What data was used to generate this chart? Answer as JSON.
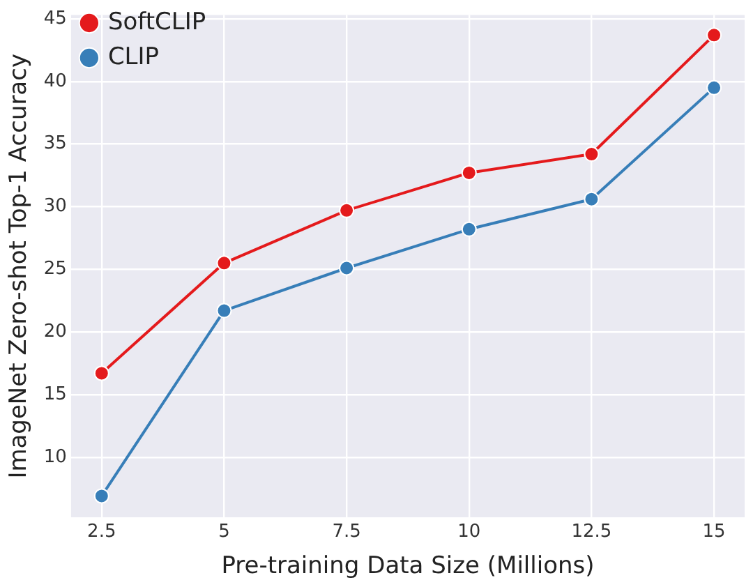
{
  "chart_data": {
    "type": "line",
    "xlabel": "Pre-training Data Size (Millions)",
    "ylabel": "ImageNet Zero-shot Top-1 Accuracy",
    "x": [
      2.5,
      5,
      7.5,
      10,
      12.5,
      15
    ],
    "series": [
      {
        "name": "SoftCLIP",
        "color": "#e41a1c",
        "values": [
          16.7,
          25.5,
          29.7,
          32.7,
          34.2,
          43.7
        ]
      },
      {
        "name": "CLIP",
        "color": "#377eb8",
        "values": [
          6.9,
          21.7,
          25.1,
          28.2,
          30.6,
          39.5
        ]
      }
    ],
    "xlim": [
      1.875,
      15.625
    ],
    "xticks": [
      {
        "value": 2.5,
        "label": "2.5"
      },
      {
        "value": 5,
        "label": "5"
      },
      {
        "value": 7.5,
        "label": "7.5"
      },
      {
        "value": 10,
        "label": "10"
      },
      {
        "value": 12.5,
        "label": "12.5"
      },
      {
        "value": 15,
        "label": "15"
      }
    ],
    "ylim": [
      5.2,
      45.3
    ],
    "yticks": [
      10,
      15,
      20,
      25,
      30,
      35,
      40,
      45
    ],
    "grid": true,
    "legend": "top left",
    "marker": "circle",
    "line_style": "solid"
  }
}
